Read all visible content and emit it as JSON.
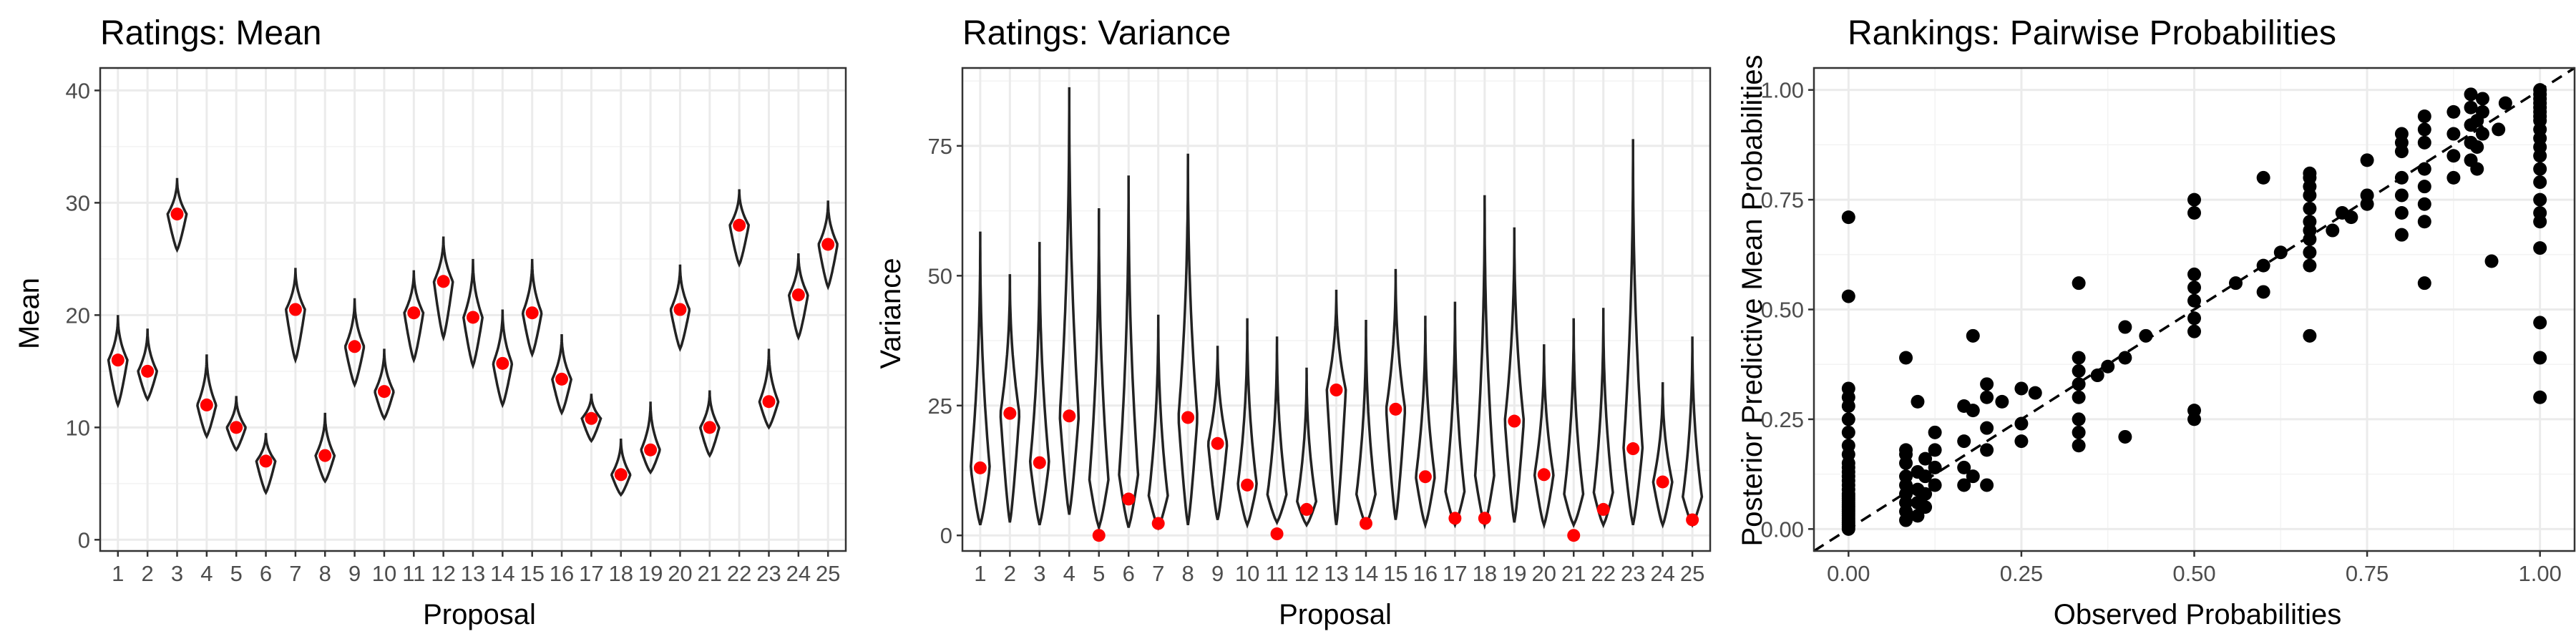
{
  "chart_data": [
    {
      "type": "violin",
      "title": "Ratings: Mean",
      "xlabel": "Proposal",
      "ylabel": "Mean",
      "categories": [
        "1",
        "2",
        "3",
        "4",
        "5",
        "6",
        "7",
        "8",
        "9",
        "10",
        "11",
        "12",
        "13",
        "14",
        "15",
        "16",
        "17",
        "18",
        "19",
        "20",
        "21",
        "22",
        "23",
        "24",
        "25"
      ],
      "ylim": [
        -1,
        42
      ],
      "yticks": [
        0,
        10,
        20,
        30,
        40
      ],
      "series": [
        {
          "observed": [
            16.0,
            15.0,
            29.0,
            12.0,
            10.0,
            7.0,
            20.5,
            7.5,
            17.2,
            13.2,
            20.2,
            23.0,
            19.8,
            15.7,
            20.2,
            14.3,
            10.8,
            5.8,
            8.0,
            20.5,
            10.0,
            28.0,
            12.3,
            21.8,
            26.3
          ],
          "dist_min": [
            12.0,
            12.5,
            25.8,
            9.2,
            8.0,
            4.2,
            16.0,
            5.2,
            13.8,
            10.8,
            16.0,
            18.0,
            15.5,
            12.0,
            16.5,
            11.3,
            8.8,
            4.0,
            6.0,
            17.0,
            7.5,
            24.5,
            10.0,
            18.0,
            22.5
          ],
          "dist_max": [
            20.0,
            18.8,
            32.2,
            16.5,
            12.8,
            9.5,
            24.2,
            11.3,
            21.5,
            17.0,
            24.0,
            27.0,
            25.0,
            20.5,
            25.0,
            18.3,
            13.0,
            9.0,
            12.3,
            24.5,
            13.3,
            31.2,
            17.0,
            25.5,
            30.2
          ]
        }
      ],
      "grid": true
    },
    {
      "type": "violin",
      "title": "Ratings: Variance",
      "xlabel": "Proposal",
      "ylabel": "Variance",
      "categories": [
        "1",
        "2",
        "3",
        "4",
        "5",
        "6",
        "7",
        "8",
        "9",
        "10",
        "11",
        "12",
        "13",
        "14",
        "15",
        "16",
        "17",
        "18",
        "19",
        "20",
        "21",
        "22",
        "23",
        "24",
        "25"
      ],
      "ylim": [
        -3,
        90
      ],
      "yticks": [
        0,
        25,
        50,
        75
      ],
      "series": [
        {
          "observed": [
            13.0,
            23.5,
            14.0,
            23.0,
            0.0,
            7.0,
            2.3,
            22.7,
            17.7,
            9.7,
            0.3,
            5.0,
            28.0,
            2.3,
            24.3,
            11.3,
            3.3,
            3.3,
            22.0,
            11.7,
            0.0,
            5.0,
            16.7,
            10.3,
            3.0
          ],
          "dist_min": [
            2.0,
            2.5,
            2.0,
            4.0,
            1.5,
            1.5,
            1.5,
            2.0,
            3.0,
            2.0,
            2.5,
            2.0,
            2.0,
            2.0,
            3.0,
            2.0,
            2.0,
            2.0,
            2.5,
            2.0,
            2.0,
            2.0,
            2.0,
            2.0,
            2.0
          ],
          "dist_max": [
            58.5,
            50.3,
            56.5,
            86.3,
            63.0,
            69.3,
            42.5,
            73.5,
            36.5,
            41.8,
            38.3,
            32.3,
            47.3,
            41.5,
            51.3,
            42.3,
            45.0,
            65.5,
            59.3,
            36.8,
            41.8,
            43.8,
            76.3,
            29.5,
            38.3
          ]
        }
      ],
      "grid": true
    },
    {
      "type": "scatter",
      "title": "Rankings: Pairwise Probabilities",
      "xlabel": "Observed Probabilities",
      "ylabel": "Posterior Predictive Mean Probabilities",
      "xlim": [
        -0.05,
        1.05
      ],
      "ylim": [
        -0.05,
        1.05
      ],
      "xticks": [
        0.0,
        0.25,
        0.5,
        0.75,
        1.0
      ],
      "yticks": [
        0.0,
        0.25,
        0.5,
        0.75,
        1.0
      ],
      "tick_labels": [
        "0.00",
        "0.25",
        "0.50",
        "0.75",
        "1.00"
      ],
      "reference_line": "y = x (dashed)",
      "points": [
        [
          0,
          0.0
        ],
        [
          0,
          0.005
        ],
        [
          0,
          0.01
        ],
        [
          0,
          0.015
        ],
        [
          0,
          0.02
        ],
        [
          0,
          0.025
        ],
        [
          0,
          0.03
        ],
        [
          0,
          0.035
        ],
        [
          0,
          0.04
        ],
        [
          0,
          0.045
        ],
        [
          0,
          0.05
        ],
        [
          0,
          0.055
        ],
        [
          0,
          0.06
        ],
        [
          0,
          0.065
        ],
        [
          0,
          0.07
        ],
        [
          0,
          0.075
        ],
        [
          0,
          0.08
        ],
        [
          0,
          0.09
        ],
        [
          0,
          0.1
        ],
        [
          0,
          0.11
        ],
        [
          0,
          0.12
        ],
        [
          0,
          0.13
        ],
        [
          0,
          0.14
        ],
        [
          0,
          0.15
        ],
        [
          0,
          0.17
        ],
        [
          0,
          0.19
        ],
        [
          0,
          0.22
        ],
        [
          0,
          0.25
        ],
        [
          0,
          0.28
        ],
        [
          0,
          0.3
        ],
        [
          0,
          0.32
        ],
        [
          0,
          0.53
        ],
        [
          0,
          0.71
        ],
        [
          0.083,
          0.02
        ],
        [
          0.083,
          0.04
        ],
        [
          0.083,
          0.06
        ],
        [
          0.083,
          0.08
        ],
        [
          0.083,
          0.1
        ],
        [
          0.083,
          0.12
        ],
        [
          0.083,
          0.15
        ],
        [
          0.083,
          0.17
        ],
        [
          0.083,
          0.18
        ],
        [
          0.083,
          0.39
        ],
        [
          0.1,
          0.03
        ],
        [
          0.1,
          0.06
        ],
        [
          0.1,
          0.09
        ],
        [
          0.1,
          0.13
        ],
        [
          0.1,
          0.29
        ],
        [
          0.111,
          0.05
        ],
        [
          0.111,
          0.08
        ],
        [
          0.111,
          0.12
        ],
        [
          0.111,
          0.16
        ],
        [
          0.125,
          0.1
        ],
        [
          0.125,
          0.14
        ],
        [
          0.125,
          0.18
        ],
        [
          0.125,
          0.22
        ],
        [
          0.167,
          0.1
        ],
        [
          0.167,
          0.14
        ],
        [
          0.167,
          0.2
        ],
        [
          0.167,
          0.28
        ],
        [
          0.18,
          0.12
        ],
        [
          0.18,
          0.27
        ],
        [
          0.18,
          0.44
        ],
        [
          0.2,
          0.1
        ],
        [
          0.2,
          0.18
        ],
        [
          0.2,
          0.23
        ],
        [
          0.2,
          0.3
        ],
        [
          0.2,
          0.33
        ],
        [
          0.222,
          0.29
        ],
        [
          0.25,
          0.2
        ],
        [
          0.25,
          0.24
        ],
        [
          0.25,
          0.32
        ],
        [
          0.27,
          0.31
        ],
        [
          0.333,
          0.19
        ],
        [
          0.333,
          0.22
        ],
        [
          0.333,
          0.25
        ],
        [
          0.333,
          0.3
        ],
        [
          0.333,
          0.33
        ],
        [
          0.333,
          0.36
        ],
        [
          0.333,
          0.39
        ],
        [
          0.333,
          0.56
        ],
        [
          0.36,
          0.35
        ],
        [
          0.375,
          0.37
        ],
        [
          0.4,
          0.21
        ],
        [
          0.4,
          0.39
        ],
        [
          0.4,
          0.46
        ],
        [
          0.43,
          0.44
        ],
        [
          0.5,
          0.25
        ],
        [
          0.5,
          0.27
        ],
        [
          0.5,
          0.45
        ],
        [
          0.5,
          0.48
        ],
        [
          0.5,
          0.52
        ],
        [
          0.5,
          0.55
        ],
        [
          0.5,
          0.58
        ],
        [
          0.5,
          0.72
        ],
        [
          0.5,
          0.75
        ],
        [
          0.56,
          0.56
        ],
        [
          0.6,
          0.54
        ],
        [
          0.6,
          0.6
        ],
        [
          0.6,
          0.8
        ],
        [
          0.625,
          0.63
        ],
        [
          0.667,
          0.44
        ],
        [
          0.667,
          0.6
        ],
        [
          0.667,
          0.63
        ],
        [
          0.667,
          0.66
        ],
        [
          0.667,
          0.68
        ],
        [
          0.667,
          0.7
        ],
        [
          0.667,
          0.73
        ],
        [
          0.667,
          0.76
        ],
        [
          0.667,
          0.78
        ],
        [
          0.667,
          0.8
        ],
        [
          0.667,
          0.81
        ],
        [
          0.7,
          0.68
        ],
        [
          0.714,
          0.72
        ],
        [
          0.727,
          0.71
        ],
        [
          0.75,
          0.74
        ],
        [
          0.75,
          0.76
        ],
        [
          0.75,
          0.84
        ],
        [
          0.8,
          0.67
        ],
        [
          0.8,
          0.72
        ],
        [
          0.8,
          0.76
        ],
        [
          0.8,
          0.8
        ],
        [
          0.8,
          0.86
        ],
        [
          0.8,
          0.88
        ],
        [
          0.8,
          0.9
        ],
        [
          0.833,
          0.56
        ],
        [
          0.833,
          0.7
        ],
        [
          0.833,
          0.74
        ],
        [
          0.833,
          0.78
        ],
        [
          0.833,
          0.82
        ],
        [
          0.833,
          0.88
        ],
        [
          0.833,
          0.91
        ],
        [
          0.833,
          0.94
        ],
        [
          0.875,
          0.8
        ],
        [
          0.875,
          0.85
        ],
        [
          0.875,
          0.9
        ],
        [
          0.875,
          0.95
        ],
        [
          0.9,
          0.84
        ],
        [
          0.9,
          0.88
        ],
        [
          0.9,
          0.92
        ],
        [
          0.9,
          0.96
        ],
        [
          0.9,
          0.99
        ],
        [
          0.909,
          0.82
        ],
        [
          0.909,
          0.87
        ],
        [
          0.909,
          0.93
        ],
        [
          0.917,
          0.9
        ],
        [
          0.917,
          0.95
        ],
        [
          0.917,
          0.98
        ],
        [
          0.93,
          0.61
        ],
        [
          0.94,
          0.91
        ],
        [
          0.95,
          0.97
        ],
        [
          1,
          0.3
        ],
        [
          1,
          0.39
        ],
        [
          1,
          0.47
        ],
        [
          1,
          0.64
        ],
        [
          1,
          0.7
        ],
        [
          1,
          0.72
        ],
        [
          1,
          0.75
        ],
        [
          1,
          0.79
        ],
        [
          1,
          0.82
        ],
        [
          1,
          0.85
        ],
        [
          1,
          0.87
        ],
        [
          1,
          0.89
        ],
        [
          1,
          0.91
        ],
        [
          1,
          0.93
        ],
        [
          1,
          0.94
        ],
        [
          1,
          0.95
        ],
        [
          1,
          0.96
        ],
        [
          1,
          0.97
        ],
        [
          1,
          0.98
        ],
        [
          1,
          0.99
        ],
        [
          1,
          1.0
        ]
      ],
      "grid": true
    }
  ]
}
